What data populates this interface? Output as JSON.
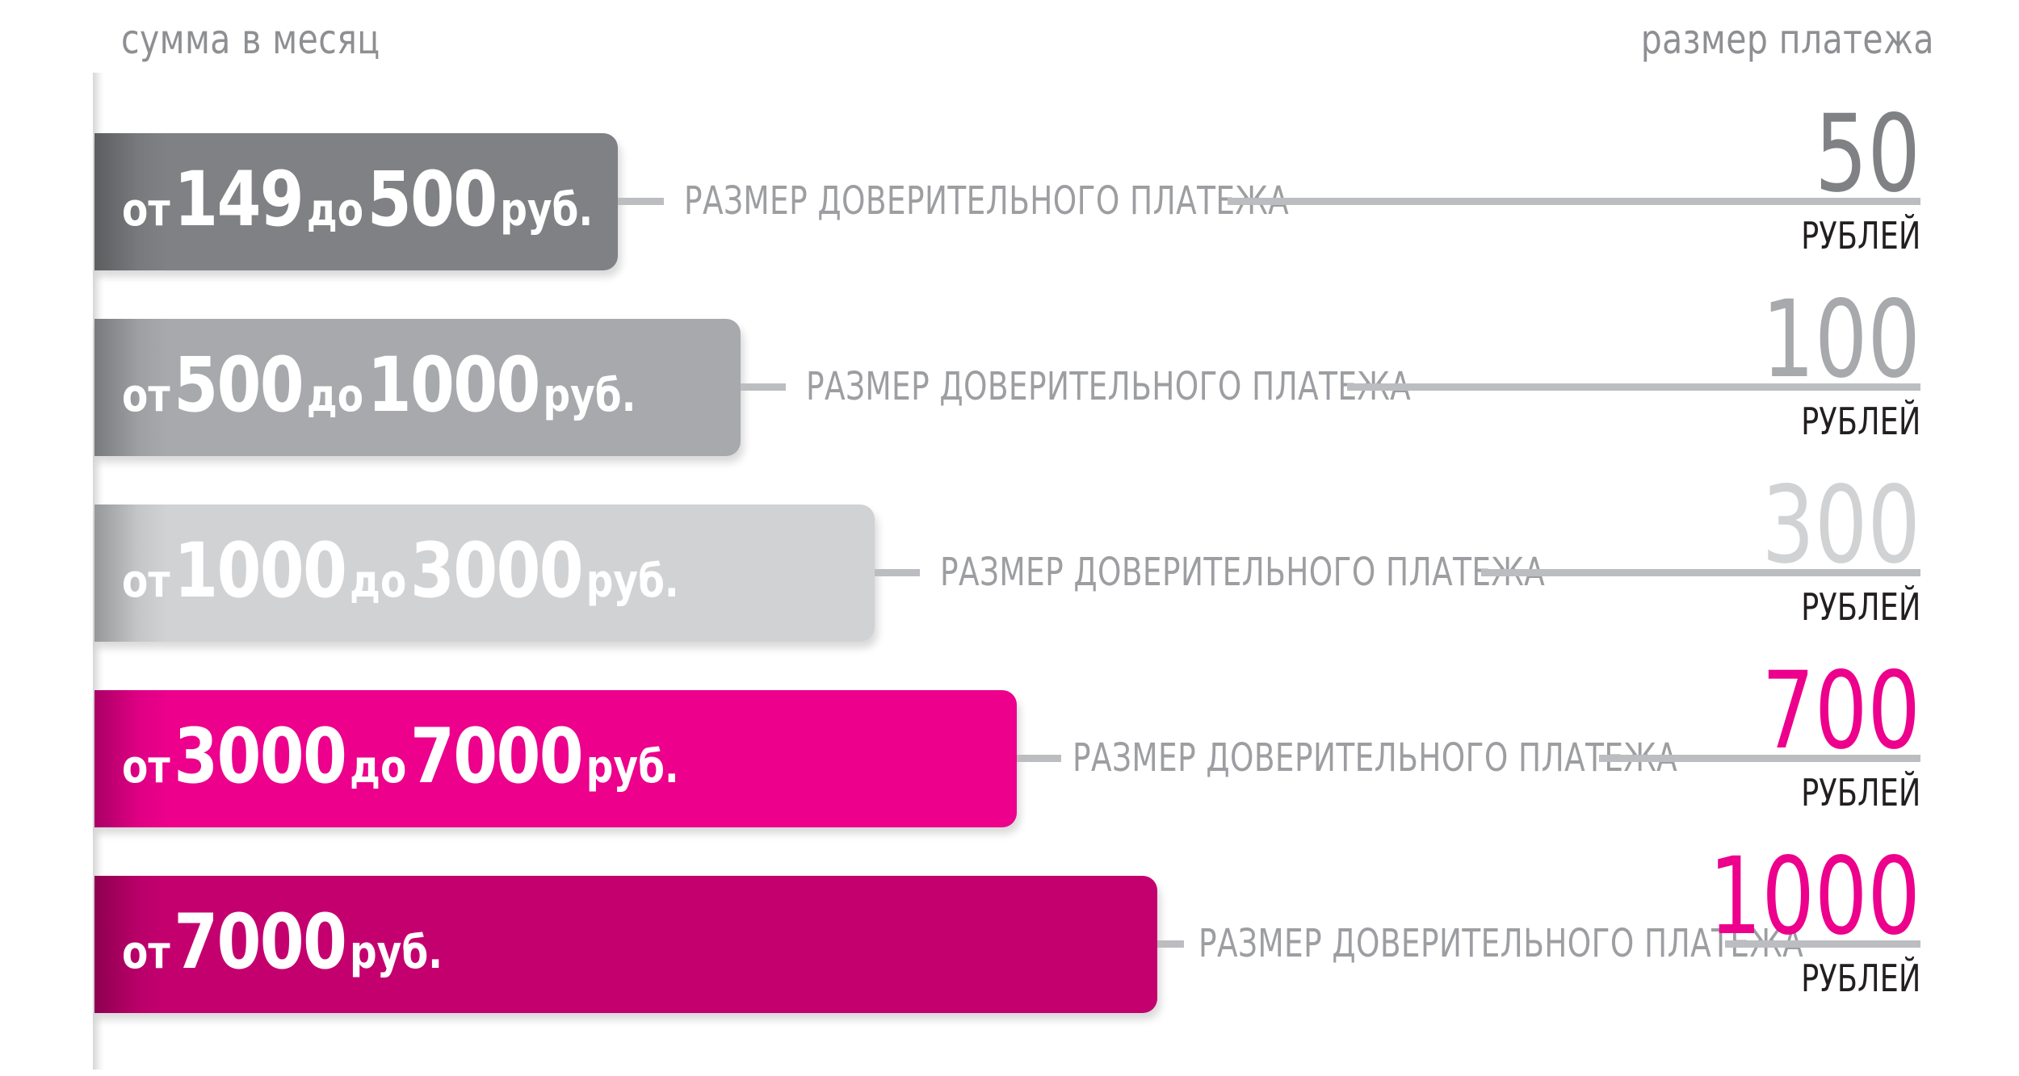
{
  "header": {
    "left_label": "сумма в месяц",
    "right_label": "размер платежа"
  },
  "tiers": [
    {
      "prefix": "от",
      "from": "149",
      "mid": "до",
      "to": "500",
      "suffix": "руб.",
      "caption": "РАЗМЕР ДОВЕРИТЕЛЬНОГО ПЛАТЕЖА",
      "amount": "50",
      "unit": "РУБЛЕЙ",
      "bar_color": "#808184",
      "amount_color": "#808184"
    },
    {
      "prefix": "от",
      "from": "500",
      "mid": "до",
      "to": "1000",
      "suffix": "руб.",
      "caption": "РАЗМЕР ДОВЕРИТЕЛЬНОГО ПЛАТЕЖА",
      "amount": "100",
      "unit": "РУБЛЕЙ",
      "bar_color": "#a7a9ac",
      "amount_color": "#a7a9ac"
    },
    {
      "prefix": "от",
      "from": "1000",
      "mid": "до",
      "to": "3000",
      "suffix": "руб.",
      "caption": "РАЗМЕР ДОВЕРИТЕЛЬНОГО ПЛАТЕЖА",
      "amount": "300",
      "unit": "РУБЛЕЙ",
      "bar_color": "#d1d2d4",
      "amount_color": "#d1d2d4"
    },
    {
      "prefix": "от",
      "from": "3000",
      "mid": "до",
      "to": "7000",
      "suffix": "руб.",
      "caption": "РАЗМЕР ДОВЕРИТЕЛЬНОГО ПЛАТЕЖА",
      "amount": "700",
      "unit": "РУБЛЕЙ",
      "bar_color": "#ec008c",
      "amount_color": "#ec008c"
    },
    {
      "prefix": "от",
      "from": "7000",
      "mid": "",
      "to": "",
      "suffix": "руб.",
      "caption": "РАЗМЕР ДОВЕРИТЕЛЬНОГО ПЛАТЕЖА",
      "amount": "1000",
      "unit": "РУБЛЕЙ",
      "bar_color": "#c4006f",
      "amount_color": "#ec008c"
    }
  ]
}
